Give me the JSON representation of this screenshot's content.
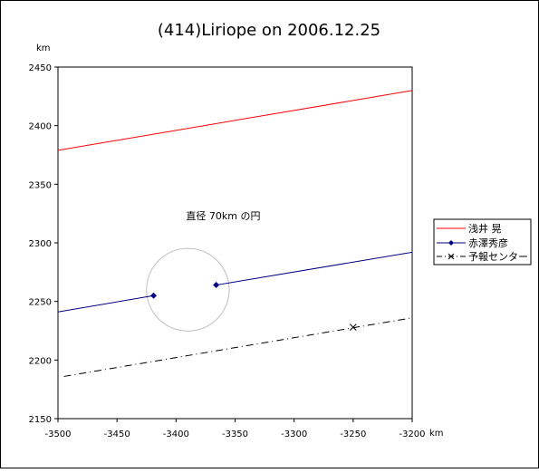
{
  "chart_data": {
    "type": "line",
    "title": "(414)Liriope on 2006.12.25",
    "xlabel": "km",
    "ylabel": "km",
    "xlim": [
      -3500,
      -3200
    ],
    "ylim": [
      2150,
      2450
    ],
    "xticks": [
      -3500,
      -3450,
      -3400,
      -3350,
      -3300,
      -3250,
      -3200
    ],
    "yticks": [
      2150,
      2200,
      2250,
      2300,
      2350,
      2400,
      2450
    ],
    "grid": false,
    "legend_position": "right",
    "series": [
      {
        "name": "浅井 晃",
        "color": "#ff0000",
        "style": "solid",
        "marker": "none",
        "points": [
          [
            -3500,
            2379
          ],
          [
            -3200,
            2430
          ]
        ]
      },
      {
        "name": "赤澤秀彦",
        "color": "#000080",
        "style": "solid",
        "marker": "diamond",
        "segments": [
          [
            [
              -3500,
              2241
            ],
            [
              -3419,
              2255
            ]
          ],
          [
            [
              -3366,
              2264
            ],
            [
              -3200,
              2292
            ]
          ]
        ],
        "markers": [
          [
            -3419,
            2255
          ],
          [
            -3366,
            2264
          ]
        ]
      },
      {
        "name": "予報センター",
        "color": "#000000",
        "style": "dashdot",
        "marker": "x",
        "points": [
          [
            -3495,
            2186
          ],
          [
            -3200,
            2236
          ]
        ],
        "markers": [
          [
            -3250,
            2228
          ]
        ]
      }
    ],
    "circle": {
      "center": [
        -3390,
        2260
      ],
      "diameter_km": 70,
      "color": "#c0c0c0"
    },
    "annotation": {
      "text": "直径 70km の円",
      "x": -3360,
      "y": 2320
    }
  }
}
